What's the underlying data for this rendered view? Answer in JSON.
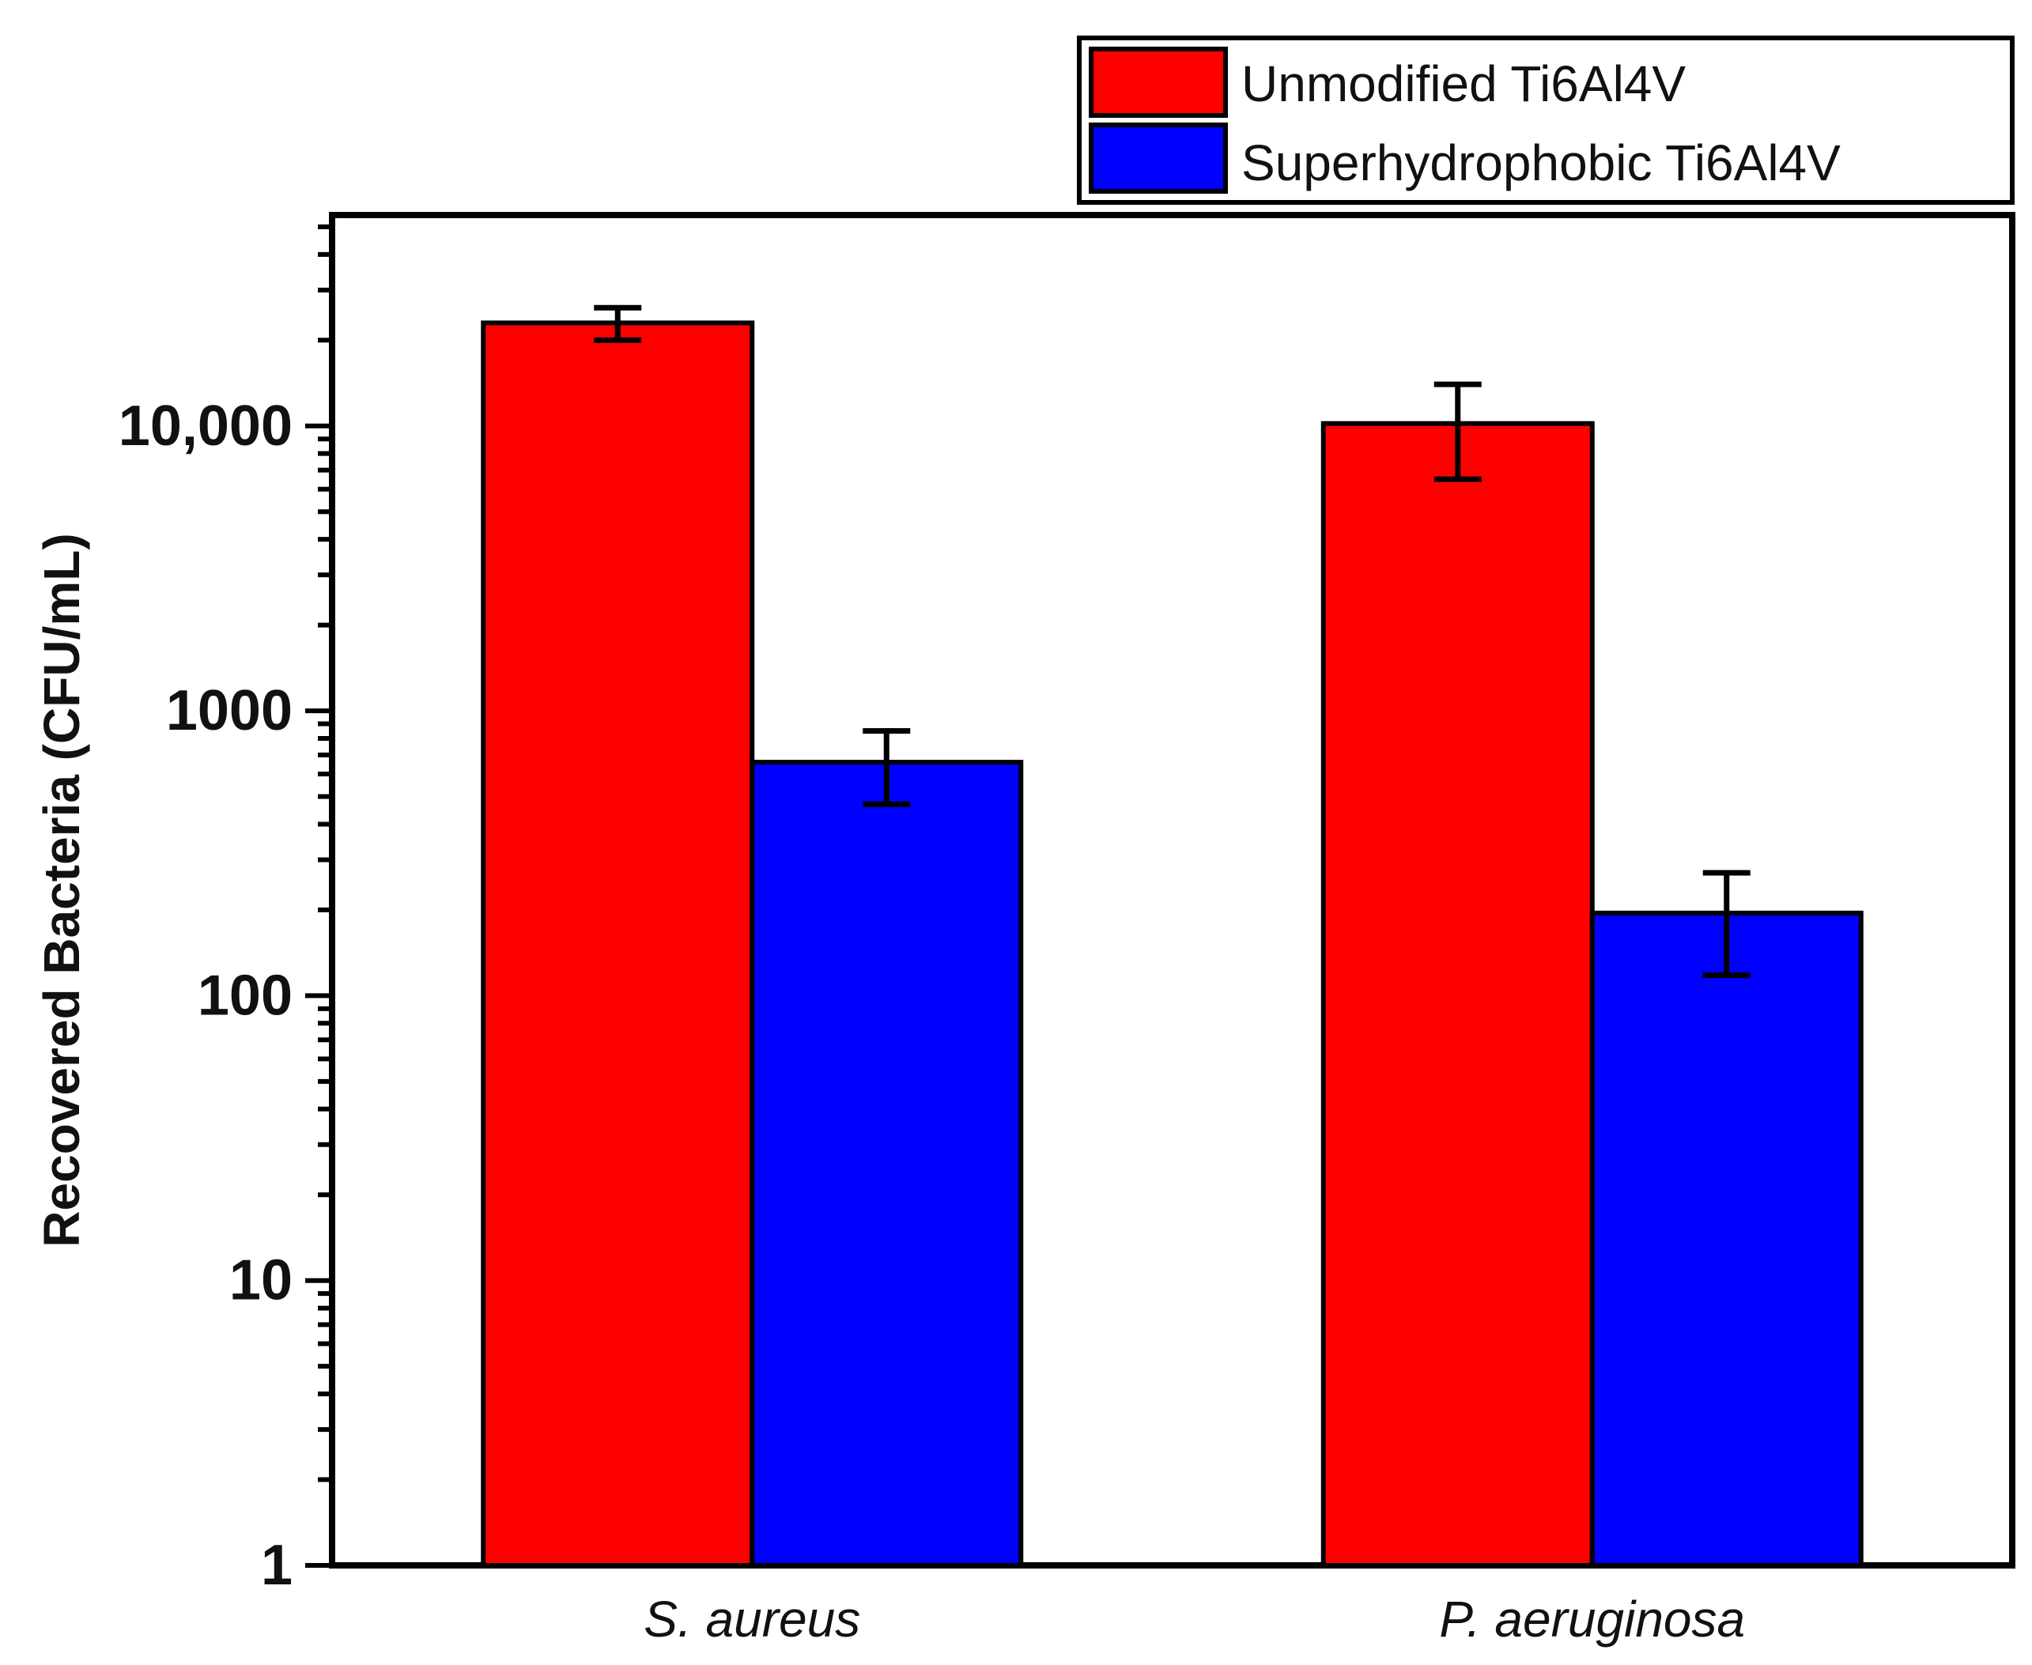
{
  "chart_data": {
    "type": "bar",
    "yscale": "log",
    "ylabel": "Recovered Bacteria (CFU/mL)",
    "xlabel": "",
    "ylim": [
      1,
      55000
    ],
    "yticks": [
      1,
      10,
      100,
      1000,
      10000
    ],
    "ytick_labels": [
      "1",
      "10",
      "100",
      "1000",
      "10,000"
    ],
    "categories": [
      "S. aureus",
      "P. aeruginosa"
    ],
    "series": [
      {
        "name": "Unmodified Ti6Al4V",
        "color": "#ff0000",
        "values": [
          23000,
          10200
        ],
        "err_low": [
          20000,
          6500
        ],
        "err_high": [
          26000,
          14000
        ]
      },
      {
        "name": "Superhydrophobic Ti6Al4V",
        "color": "#0000ff",
        "values": [
          660,
          195
        ],
        "err_low": [
          470,
          118
        ],
        "err_high": [
          850,
          270
        ]
      }
    ],
    "legend_labels": [
      "Unmodified Ti6Al4V",
      "Superhydrophobic Ti6Al4V"
    ],
    "legend_position": "top-right",
    "grid": false
  }
}
